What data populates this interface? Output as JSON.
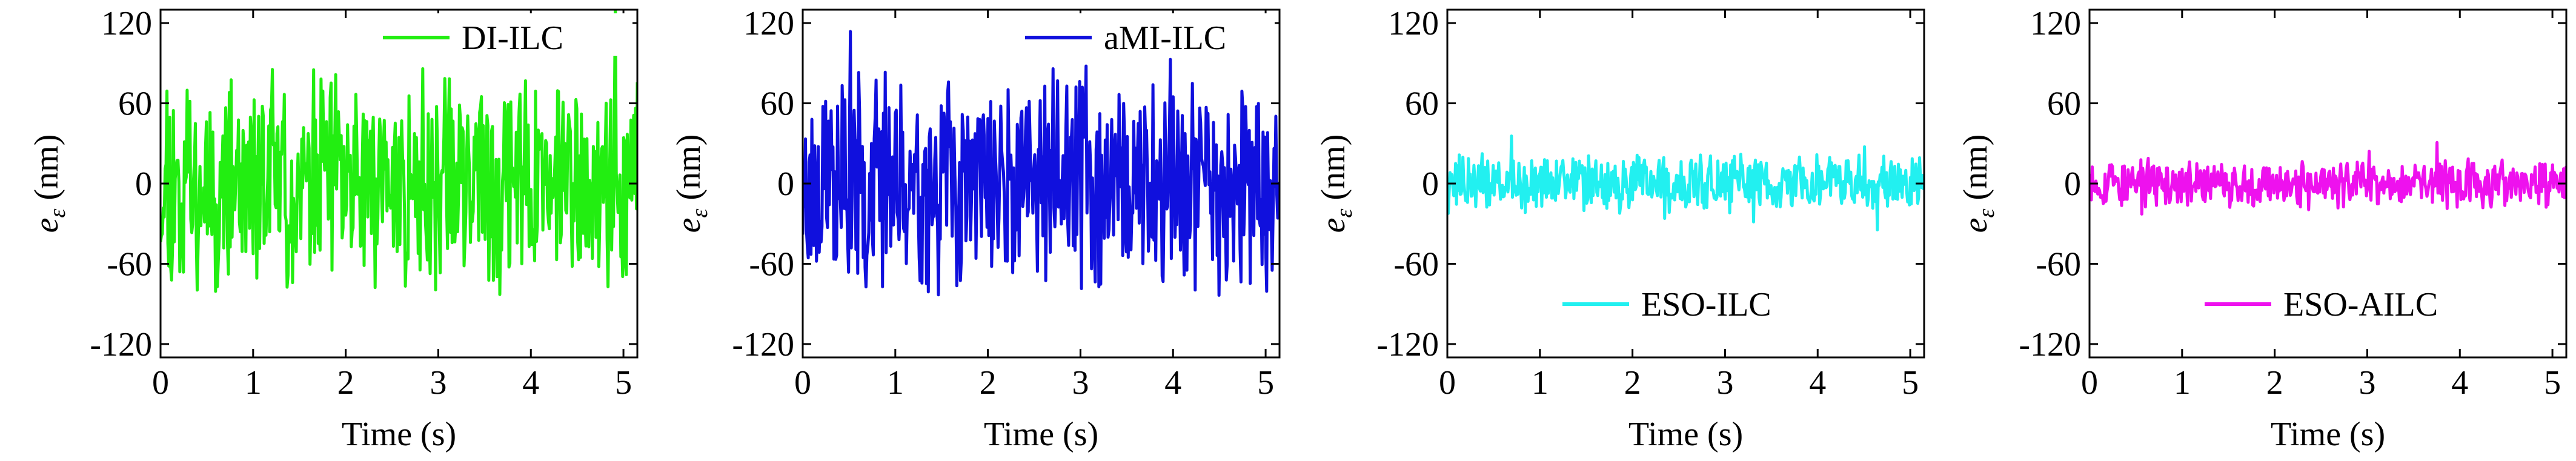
{
  "figure": {
    "panel_count": 4
  },
  "chart_data": [
    {
      "type": "line",
      "title": "",
      "xlabel": "Time (s)",
      "ylabel_symbol": "e",
      "ylabel_subscript": "ε",
      "ylabel_unit": " (nm)",
      "xlim": [
        0,
        5.15
      ],
      "ylim": [
        -130,
        130
      ],
      "xticks": [
        0,
        1,
        2,
        3,
        4,
        5
      ],
      "yticks": [
        120,
        60,
        0,
        -60,
        -120
      ],
      "grid": false,
      "legend_position": "top-right",
      "series": [
        {
          "name": "DI-ILC",
          "color": "#22ee11",
          "amplitude": 80,
          "seed": 11
        }
      ]
    },
    {
      "type": "line",
      "title": "",
      "xlabel": "Time (s)",
      "ylabel_symbol": "e",
      "ylabel_subscript": "ε",
      "ylabel_unit": " (nm)",
      "xlim": [
        0,
        5.15
      ],
      "ylim": [
        -130,
        130
      ],
      "xticks": [
        0,
        1,
        2,
        3,
        4,
        5
      ],
      "yticks": [
        120,
        60,
        0,
        -60,
        -120
      ],
      "grid": false,
      "legend_position": "top-right",
      "series": [
        {
          "name": "aMI-ILC",
          "color": "#1010dd",
          "amplitude": 80,
          "seed": 23
        }
      ]
    },
    {
      "type": "line",
      "title": "",
      "xlabel": "Time (s)",
      "ylabel_symbol": "e",
      "ylabel_subscript": "ε",
      "ylabel_unit": " (nm)",
      "xlim": [
        0,
        5.15
      ],
      "ylim": [
        -130,
        130
      ],
      "xticks": [
        0,
        1,
        2,
        3,
        4,
        5
      ],
      "yticks": [
        120,
        60,
        0,
        -60,
        -120
      ],
      "grid": false,
      "legend_position": "bottom-center",
      "series": [
        {
          "name": "ESO-ILC",
          "color": "#22f0f0",
          "amplitude": 22,
          "seed": 37
        }
      ]
    },
    {
      "type": "line",
      "title": "",
      "xlabel": "Time (s)",
      "ylabel_symbol": "e",
      "ylabel_subscript": "ε",
      "ylabel_unit": " (nm)",
      "xlim": [
        0,
        5.15
      ],
      "ylim": [
        -130,
        130
      ],
      "xticks": [
        0,
        1,
        2,
        3,
        4,
        5
      ],
      "yticks": [
        120,
        60,
        0,
        -60,
        -120
      ],
      "grid": false,
      "legend_position": "bottom-center",
      "series": [
        {
          "name": "ESO-AILC",
          "color": "#ee11ee",
          "amplitude": 18,
          "seed": 53
        }
      ]
    }
  ]
}
